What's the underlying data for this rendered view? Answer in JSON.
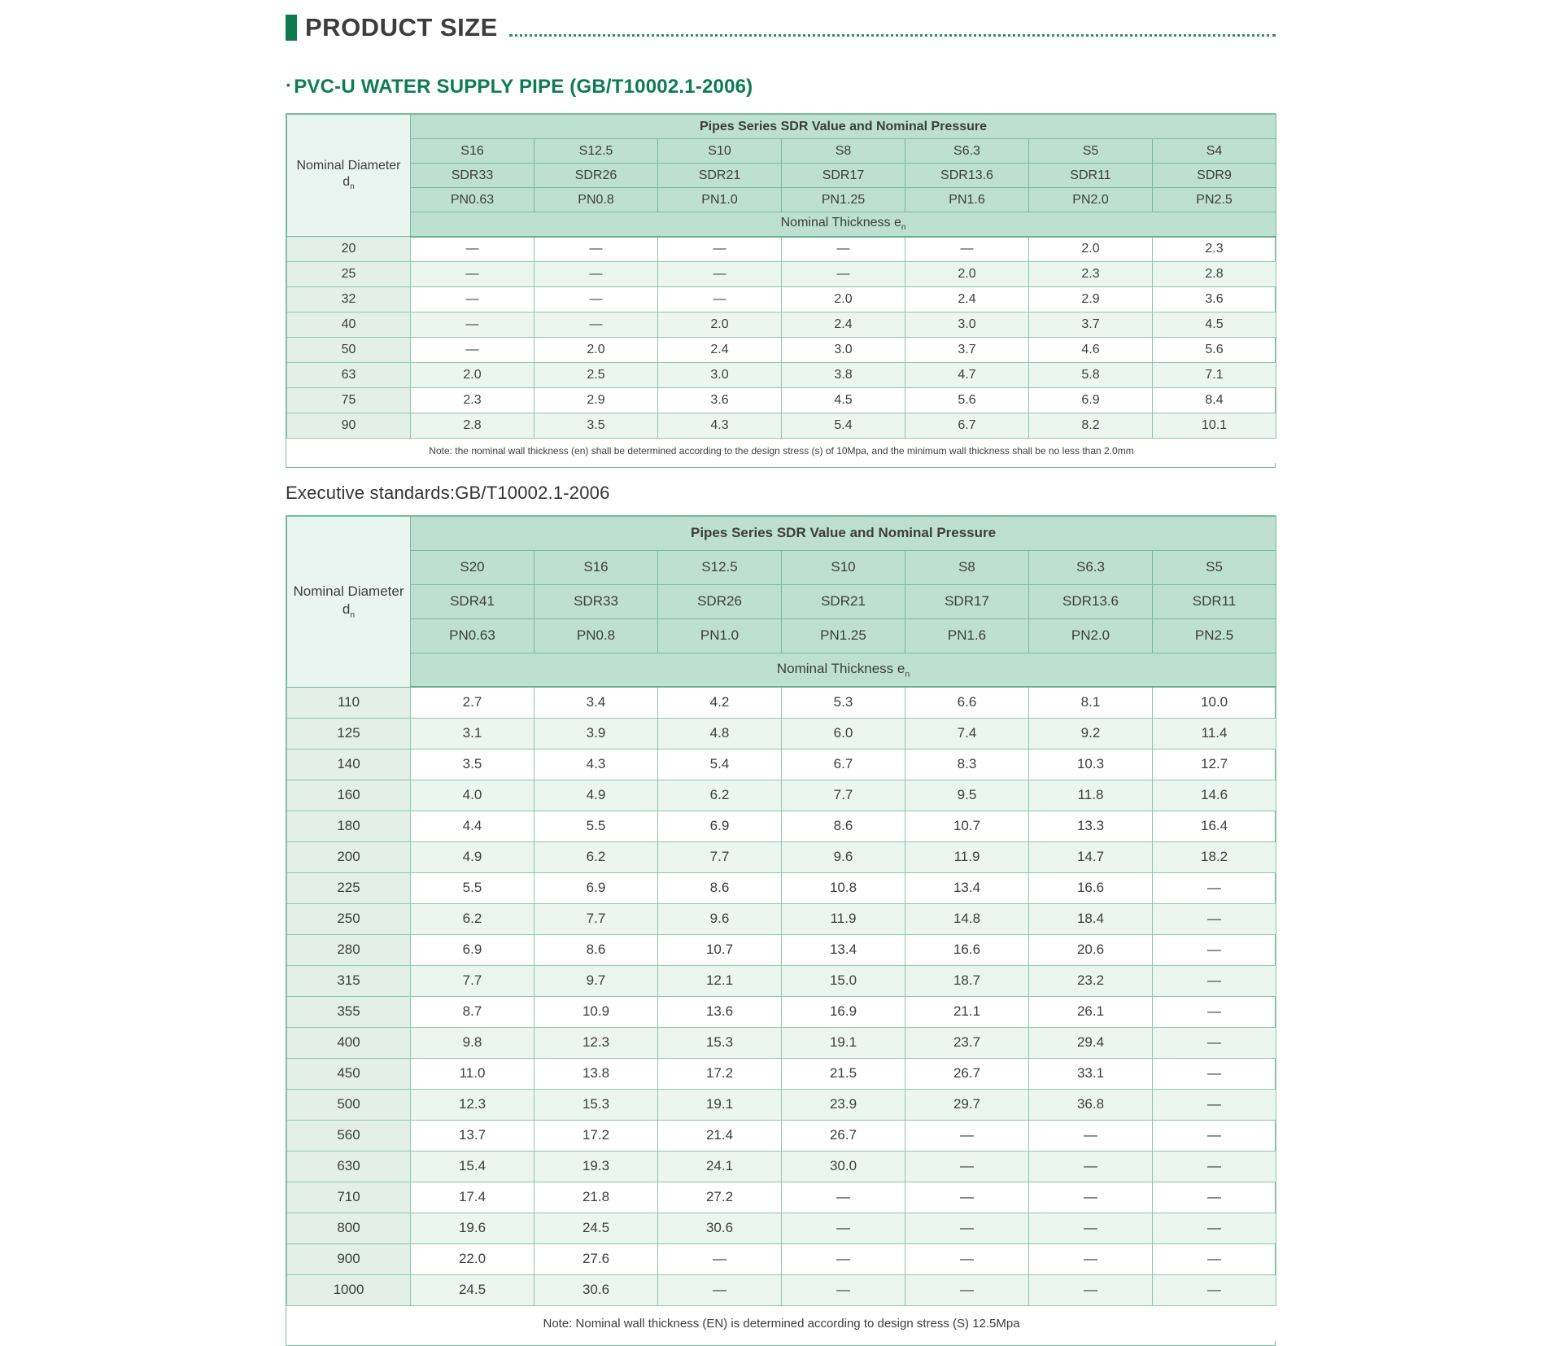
{
  "page": {
    "section_title": "PRODUCT SIZE",
    "product_title": "PVC-U WATER SUPPLY PIPE (GB/T10002.1-2006)",
    "bullet": "·",
    "executive_standards": "Executive standards:GB/T10002.1-2006"
  },
  "table1": {
    "span_header": "Pipes Series SDR Value and Nominal Pressure",
    "diameter_label": "Nominal Diameter",
    "diameter_symbol": "d",
    "diameter_symbol_sub": "n",
    "thickness_label": "Nominal Thickness e",
    "thickness_sub": "n",
    "s_values": [
      "S16",
      "S12.5",
      "S10",
      "S8",
      "S6.3",
      "S5",
      "S4"
    ],
    "sdr_values": [
      "SDR33",
      "SDR26",
      "SDR21",
      "SDR17",
      "SDR13.6",
      "SDR11",
      "SDR9"
    ],
    "pn_values": [
      "PN0.63",
      "PN0.8",
      "PN1.0",
      "PN1.25",
      "PN1.6",
      "PN2.0",
      "PN2.5"
    ],
    "rows": [
      [
        "20",
        "—",
        "—",
        "—",
        "—",
        "—",
        "2.0",
        "2.3"
      ],
      [
        "25",
        "—",
        "—",
        "—",
        "—",
        "2.0",
        "2.3",
        "2.8"
      ],
      [
        "32",
        "—",
        "—",
        "—",
        "2.0",
        "2.4",
        "2.9",
        "3.6"
      ],
      [
        "40",
        "—",
        "—",
        "2.0",
        "2.4",
        "3.0",
        "3.7",
        "4.5"
      ],
      [
        "50",
        "—",
        "2.0",
        "2.4",
        "3.0",
        "3.7",
        "4.6",
        "5.6"
      ],
      [
        "63",
        "2.0",
        "2.5",
        "3.0",
        "3.8",
        "4.7",
        "5.8",
        "7.1"
      ],
      [
        "75",
        "2.3",
        "2.9",
        "3.6",
        "4.5",
        "5.6",
        "6.9",
        "8.4"
      ],
      [
        "90",
        "2.8",
        "3.5",
        "4.3",
        "5.4",
        "6.7",
        "8.2",
        "10.1"
      ]
    ],
    "note": "Note: the nominal wall thickness (en) shall be determined according to the design stress (s) of 10Mpa, and the minimum wall thickness shall be no less than 2.0mm"
  },
  "table2": {
    "span_header": "Pipes Series SDR Value and Nominal Pressure",
    "diameter_label": "Nominal Diameter",
    "diameter_symbol": "d",
    "diameter_symbol_sub": "n",
    "thickness_label": "Nominal Thickness e",
    "thickness_sub": "n",
    "s_values": [
      "S20",
      "S16",
      "S12.5",
      "S10",
      "S8",
      "S6.3",
      "S5"
    ],
    "sdr_values": [
      "SDR41",
      "SDR33",
      "SDR26",
      "SDR21",
      "SDR17",
      "SDR13.6",
      "SDR11"
    ],
    "pn_values": [
      "PN0.63",
      "PN0.8",
      "PN1.0",
      "PN1.25",
      "PN1.6",
      "PN2.0",
      "PN2.5"
    ],
    "rows": [
      [
        "110",
        "2.7",
        "3.4",
        "4.2",
        "5.3",
        "6.6",
        "8.1",
        "10.0"
      ],
      [
        "125",
        "3.1",
        "3.9",
        "4.8",
        "6.0",
        "7.4",
        "9.2",
        "11.4"
      ],
      [
        "140",
        "3.5",
        "4.3",
        "5.4",
        "6.7",
        "8.3",
        "10.3",
        "12.7"
      ],
      [
        "160",
        "4.0",
        "4.9",
        "6.2",
        "7.7",
        "9.5",
        "11.8",
        "14.6"
      ],
      [
        "180",
        "4.4",
        "5.5",
        "6.9",
        "8.6",
        "10.7",
        "13.3",
        "16.4"
      ],
      [
        "200",
        "4.9",
        "6.2",
        "7.7",
        "9.6",
        "11.9",
        "14.7",
        "18.2"
      ],
      [
        "225",
        "5.5",
        "6.9",
        "8.6",
        "10.8",
        "13.4",
        "16.6",
        "—"
      ],
      [
        "250",
        "6.2",
        "7.7",
        "9.6",
        "11.9",
        "14.8",
        "18.4",
        "—"
      ],
      [
        "280",
        "6.9",
        "8.6",
        "10.7",
        "13.4",
        "16.6",
        "20.6",
        "—"
      ],
      [
        "315",
        "7.7",
        "9.7",
        "12.1",
        "15.0",
        "18.7",
        "23.2",
        "—"
      ],
      [
        "355",
        "8.7",
        "10.9",
        "13.6",
        "16.9",
        "21.1",
        "26.1",
        "—"
      ],
      [
        "400",
        "9.8",
        "12.3",
        "15.3",
        "19.1",
        "23.7",
        "29.4",
        "—"
      ],
      [
        "450",
        "11.0",
        "13.8",
        "17.2",
        "21.5",
        "26.7",
        "33.1",
        "—"
      ],
      [
        "500",
        "12.3",
        "15.3",
        "19.1",
        "23.9",
        "29.7",
        "36.8",
        "—"
      ],
      [
        "560",
        "13.7",
        "17.2",
        "21.4",
        "26.7",
        "—",
        "—",
        "—"
      ],
      [
        "630",
        "15.4",
        "19.3",
        "24.1",
        "30.0",
        "—",
        "—",
        "—"
      ],
      [
        "710",
        "17.4",
        "21.8",
        "27.2",
        "—",
        "—",
        "—",
        "—"
      ],
      [
        "800",
        "19.6",
        "24.5",
        "30.6",
        "—",
        "—",
        "—",
        "—"
      ],
      [
        "900",
        "22.0",
        "27.6",
        "—",
        "—",
        "—",
        "—",
        "—"
      ],
      [
        "1000",
        "24.5",
        "30.6",
        "—",
        "—",
        "—",
        "—",
        "—"
      ]
    ],
    "note": "Note: Nominal wall thickness (EN) is determined according to design stress (S) 12.5Mpa"
  }
}
